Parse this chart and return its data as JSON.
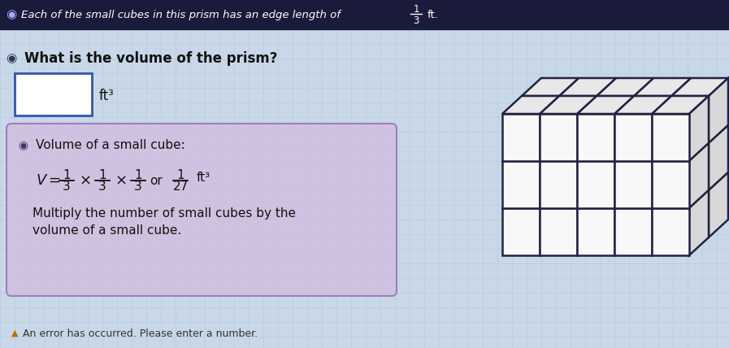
{
  "bg_color": "#c8d8e8",
  "top_bar_color": "#1a1a3a",
  "top_text": "Each of the small cubes in this prism has an edge length of",
  "top_unit": "ft.",
  "question_text": "What is the volume of the prism?",
  "unit_label": "ft³",
  "hint_bg_color": "#d0c0e0",
  "hint_title": "Volume of a small cube:",
  "hint_line1": "Multiply the number of small cubes by the",
  "hint_line2": "volume of a small cube.",
  "error_color": "#cc6600",
  "input_box_color": "#ffffff",
  "grid_line_color": "#b0c4d8",
  "cube_face_color": "#f8f8f8",
  "cube_top_color": "#e8e8e8",
  "cube_right_color": "#d8d8d8",
  "cube_line_color": "#222244"
}
